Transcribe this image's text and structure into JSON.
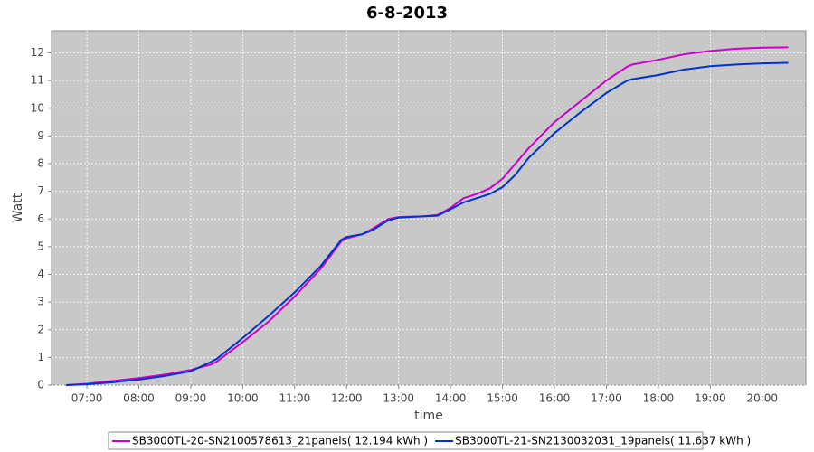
{
  "chart_data": {
    "type": "line",
    "title": "6-8-2013",
    "x_label": "time",
    "y_label": "Watt",
    "x": [
      6.6,
      7.0,
      7.5,
      8.0,
      8.5,
      9.0,
      9.4,
      9.5,
      10.0,
      10.5,
      11.0,
      11.5,
      11.9,
      12.0,
      12.3,
      12.5,
      12.8,
      13.0,
      13.5,
      13.75,
      14.0,
      14.25,
      14.5,
      14.75,
      15.0,
      15.25,
      15.5,
      16.0,
      16.5,
      17.0,
      17.4,
      17.5,
      18.0,
      18.5,
      19.0,
      19.5,
      20.0,
      20.5
    ],
    "series": [
      {
        "name": "SB3000TL-20-SN2100578613_21panels( 12.194 kWh )",
        "color": "#cc00cc",
        "values": [
          0,
          0.05,
          0.15,
          0.25,
          0.38,
          0.55,
          0.75,
          0.85,
          1.55,
          2.3,
          3.2,
          4.2,
          5.2,
          5.3,
          5.45,
          5.65,
          6.0,
          6.07,
          6.1,
          6.15,
          6.4,
          6.75,
          6.9,
          7.1,
          7.45,
          8.0,
          8.55,
          9.5,
          10.25,
          11.0,
          11.5,
          11.58,
          11.75,
          11.95,
          12.07,
          12.15,
          12.19,
          12.2
        ]
      },
      {
        "name": "SB3000TL-21-SN2130032031_19panels( 11.637 kWh )",
        "color": "#0033cc",
        "values": [
          0,
          0.03,
          0.1,
          0.2,
          0.33,
          0.5,
          0.85,
          0.95,
          1.7,
          2.5,
          3.35,
          4.3,
          5.25,
          5.35,
          5.45,
          5.6,
          5.95,
          6.05,
          6.1,
          6.12,
          6.35,
          6.6,
          6.75,
          6.9,
          7.15,
          7.6,
          8.2,
          9.1,
          9.85,
          10.55,
          11.0,
          11.05,
          11.2,
          11.4,
          11.52,
          11.58,
          11.62,
          11.64
        ]
      }
    ],
    "xlim": [
      6.32,
      20.84
    ],
    "ylim": [
      0,
      12.8
    ],
    "xticks": [
      {
        "value": 7,
        "label": "07:00"
      },
      {
        "value": 8,
        "label": "08:00"
      },
      {
        "value": 9,
        "label": "09:00"
      },
      {
        "value": 10,
        "label": "10:00"
      },
      {
        "value": 11,
        "label": "11:00"
      },
      {
        "value": 12,
        "label": "12:00"
      },
      {
        "value": 13,
        "label": "13:00"
      },
      {
        "value": 14,
        "label": "14:00"
      },
      {
        "value": 15,
        "label": "15:00"
      },
      {
        "value": 16,
        "label": "16:00"
      },
      {
        "value": 17,
        "label": "17:00"
      },
      {
        "value": 18,
        "label": "18:00"
      },
      {
        "value": 19,
        "label": "19:00"
      },
      {
        "value": 20,
        "label": "20:00"
      }
    ],
    "yticks": [
      0,
      1,
      2,
      3,
      4,
      5,
      6,
      7,
      8,
      9,
      10,
      11,
      12
    ],
    "grid": true,
    "legend_position": "bottom"
  }
}
